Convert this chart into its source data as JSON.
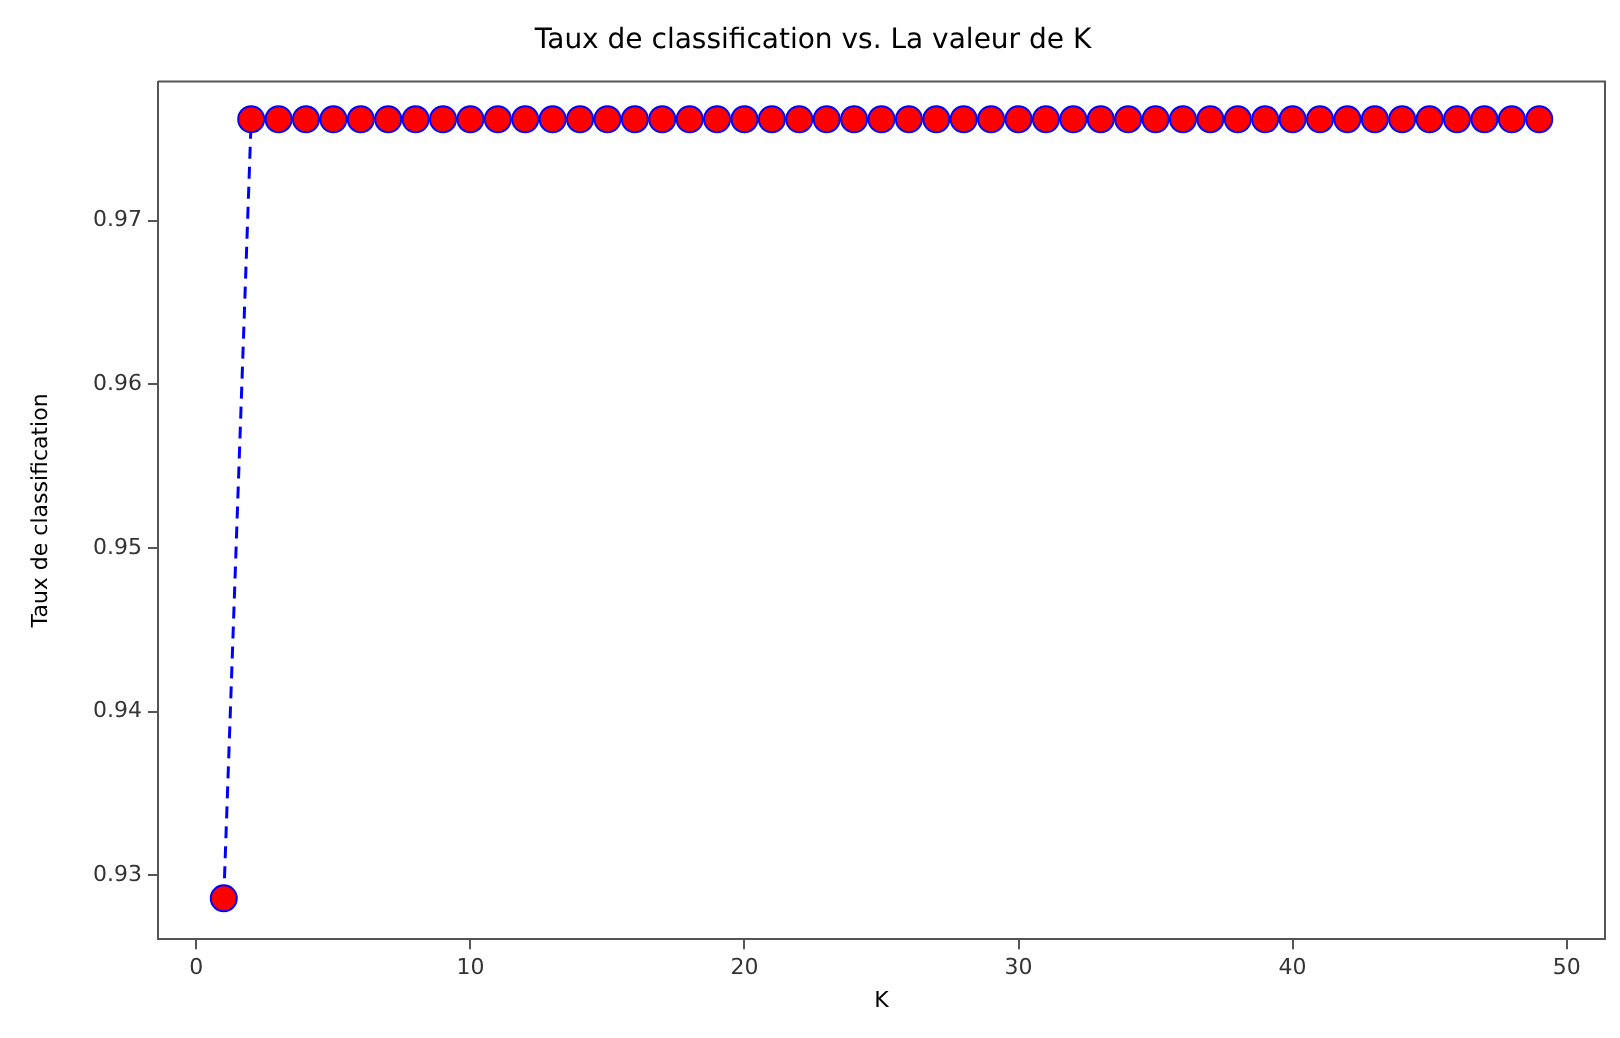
{
  "chart_data": {
    "type": "line",
    "title": "Taux de classification vs. La valeur de K",
    "xlabel": "K",
    "ylabel": "Taux de classification",
    "x": [
      1,
      2,
      3,
      4,
      5,
      6,
      7,
      8,
      9,
      10,
      11,
      12,
      13,
      14,
      15,
      16,
      17,
      18,
      19,
      20,
      21,
      22,
      23,
      24,
      25,
      26,
      27,
      28,
      29,
      30,
      31,
      32,
      33,
      34,
      35,
      36,
      37,
      38,
      39,
      40,
      41,
      42,
      43,
      44,
      45,
      46,
      47,
      48,
      49
    ],
    "series": [
      {
        "color": "#0000ff",
        "colors": [
          "#ff0000",
          "#ff0000",
          "#ff0000",
          "#ff0000",
          "#ff0000",
          "#ff0000",
          "#ff0000",
          "#ff0000",
          "#ff0000",
          "#ff0000",
          "#ff0000",
          "#ff0000",
          "#ff0000",
          "#ff0000",
          "#ff0000",
          "#ff0000",
          "#ff0000",
          "#ff0000",
          "#ff0000",
          "#ff0000",
          "#ff0000",
          "#ff0000",
          "#ff0000",
          "#ff0000",
          "#ff0000",
          "#ff0000",
          "#ff0000",
          "#ff0000",
          "#ff0000",
          "#ff0000",
          "#ff0000",
          "#ff0000",
          "#ff0000",
          "#ff0000",
          "#ff0000",
          "#ff0000",
          "#ff0000",
          "#ff0000",
          "#ff0000",
          "#ff0000",
          "#ff0000",
          "#ff0000",
          "#ff0000",
          "#ff0000",
          "#ff0000",
          "#ff0000",
          "#ff0000",
          "#ff0000",
          "#ff0000"
        ],
        "values": [
          0.9286,
          0.9762,
          0.9762,
          0.9762,
          0.9762,
          0.9762,
          0.9762,
          0.9762,
          0.9762,
          0.9762,
          0.9762,
          0.9762,
          0.9762,
          0.9762,
          0.9762,
          0.9762,
          0.9762,
          0.9762,
          0.9762,
          0.9762,
          0.9762,
          0.9762,
          0.9762,
          0.9762,
          0.9762,
          0.9762,
          0.9762,
          0.9762,
          0.9762,
          0.9762,
          0.9762,
          0.9762,
          0.9762,
          0.9762,
          0.9762,
          0.9762,
          0.9762,
          0.9762,
          0.9762,
          0.9762,
          0.9762,
          0.9762,
          0.9762,
          0.9762,
          0.9762,
          0.9762,
          0.9762,
          0.9762,
          0.9762
        ]
      }
    ],
    "xlim": [
      -1.4,
      51.4
    ],
    "xticks": [
      0,
      10,
      20,
      30,
      40,
      50
    ],
    "ylim": [
      0.9261,
      0.9785
    ],
    "yticks": [
      0.93,
      0.94,
      0.95,
      0.96,
      0.97
    ],
    "grid": false,
    "legend": false,
    "marker": "circle",
    "line_style": "dashed"
  }
}
